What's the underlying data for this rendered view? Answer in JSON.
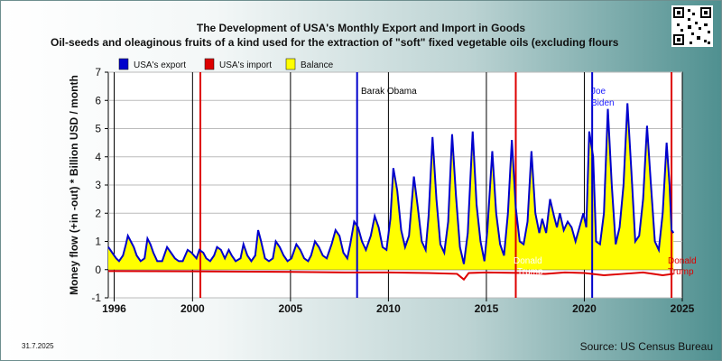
{
  "title_line1": "The Development of USA's Monthly Export and Import in Goods",
  "title_line2": "Oil-seeds and oleaginous fruits of a kind used for the extraction of \"soft\" fixed vegetable oils (excluding flours",
  "date": "31.7.2025",
  "source": "Source: US Census Bureau",
  "qr_label": "QR code",
  "colors": {
    "export": "#0000cc",
    "import": "#dd0000",
    "balance": "#ffff00",
    "presidents": [
      "#0000cc",
      "#dd0000",
      "#0000cc",
      "#dd0000"
    ]
  },
  "chart_data": {
    "type": "area",
    "ylabel": "Money flow (+in -out) * Billion USD / month",
    "ylim": [
      -1,
      7
    ],
    "yticks": [
      -1,
      0,
      1,
      2,
      3,
      4,
      5,
      6,
      7
    ],
    "xlim": [
      1995.7,
      2025.0
    ],
    "xticks": [
      1996,
      2000,
      2005,
      2010,
      2015,
      2020,
      2025
    ],
    "grid": true,
    "legend_position": "top-left",
    "series": [
      {
        "name": "USA's export",
        "key": "export"
      },
      {
        "name": "USA's import",
        "key": "import"
      },
      {
        "name": "Balance",
        "key": "balance"
      }
    ],
    "export_points": [
      [
        1995.7,
        0.8
      ],
      [
        1995.9,
        0.6
      ],
      [
        1996.1,
        0.4
      ],
      [
        1996.25,
        0.3
      ],
      [
        1996.45,
        0.5
      ],
      [
        1996.6,
        0.9
      ],
      [
        1996.7,
        1.2
      ],
      [
        1996.85,
        1.0
      ],
      [
        1997.0,
        0.8
      ],
      [
        1997.15,
        0.5
      ],
      [
        1997.35,
        0.3
      ],
      [
        1997.55,
        0.4
      ],
      [
        1997.7,
        1.1
      ],
      [
        1997.85,
        0.9
      ],
      [
        1998.0,
        0.6
      ],
      [
        1998.2,
        0.3
      ],
      [
        1998.45,
        0.3
      ],
      [
        1998.7,
        0.8
      ],
      [
        1998.9,
        0.6
      ],
      [
        1999.1,
        0.4
      ],
      [
        1999.3,
        0.3
      ],
      [
        1999.5,
        0.3
      ],
      [
        1999.75,
        0.7
      ],
      [
        1999.95,
        0.6
      ],
      [
        2000.2,
        0.4
      ],
      [
        2000.35,
        0.7
      ],
      [
        2000.55,
        0.6
      ],
      [
        2000.7,
        0.4
      ],
      [
        2000.9,
        0.3
      ],
      [
        2001.1,
        0.5
      ],
      [
        2001.25,
        0.8
      ],
      [
        2001.45,
        0.7
      ],
      [
        2001.65,
        0.4
      ],
      [
        2001.85,
        0.7
      ],
      [
        2002.0,
        0.5
      ],
      [
        2002.2,
        0.3
      ],
      [
        2002.45,
        0.4
      ],
      [
        2002.6,
        0.9
      ],
      [
        2002.8,
        0.5
      ],
      [
        2003.0,
        0.3
      ],
      [
        2003.2,
        0.5
      ],
      [
        2003.35,
        1.4
      ],
      [
        2003.5,
        1.0
      ],
      [
        2003.7,
        0.4
      ],
      [
        2003.9,
        0.3
      ],
      [
        2004.1,
        0.4
      ],
      [
        2004.25,
        1.0
      ],
      [
        2004.45,
        0.8
      ],
      [
        2004.65,
        0.5
      ],
      [
        2004.85,
        0.3
      ],
      [
        2005.05,
        0.4
      ],
      [
        2005.3,
        0.9
      ],
      [
        2005.5,
        0.7
      ],
      [
        2005.7,
        0.4
      ],
      [
        2005.9,
        0.3
      ],
      [
        2006.05,
        0.5
      ],
      [
        2006.25,
        1.0
      ],
      [
        2006.45,
        0.8
      ],
      [
        2006.65,
        0.5
      ],
      [
        2006.85,
        0.4
      ],
      [
        2007.1,
        0.9
      ],
      [
        2007.3,
        1.4
      ],
      [
        2007.5,
        1.2
      ],
      [
        2007.7,
        0.6
      ],
      [
        2007.9,
        0.4
      ],
      [
        2008.05,
        0.9
      ],
      [
        2008.25,
        1.7
      ],
      [
        2008.45,
        1.5
      ],
      [
        2008.65,
        1.0
      ],
      [
        2008.85,
        0.7
      ],
      [
        2009.1,
        1.2
      ],
      [
        2009.3,
        1.9
      ],
      [
        2009.5,
        1.5
      ],
      [
        2009.7,
        0.8
      ],
      [
        2009.9,
        0.7
      ],
      [
        2010.1,
        1.8
      ],
      [
        2010.25,
        3.6
      ],
      [
        2010.45,
        2.8
      ],
      [
        2010.65,
        1.4
      ],
      [
        2010.85,
        0.8
      ],
      [
        2011.05,
        1.2
      ],
      [
        2011.3,
        3.3
      ],
      [
        2011.5,
        2.2
      ],
      [
        2011.7,
        1.0
      ],
      [
        2011.9,
        0.7
      ],
      [
        2012.05,
        1.9
      ],
      [
        2012.25,
        4.7
      ],
      [
        2012.45,
        2.5
      ],
      [
        2012.65,
        0.9
      ],
      [
        2012.85,
        0.6
      ],
      [
        2013.05,
        1.7
      ],
      [
        2013.25,
        4.8
      ],
      [
        2013.45,
        2.6
      ],
      [
        2013.65,
        0.8
      ],
      [
        2013.85,
        0.2
      ],
      [
        2014.05,
        1.3
      ],
      [
        2014.3,
        4.9
      ],
      [
        2014.5,
        2.3
      ],
      [
        2014.7,
        1.0
      ],
      [
        2014.9,
        0.3
      ],
      [
        2015.05,
        1.4
      ],
      [
        2015.3,
        4.2
      ],
      [
        2015.5,
        2.0
      ],
      [
        2015.7,
        0.9
      ],
      [
        2015.9,
        0.5
      ],
      [
        2016.1,
        2.0
      ],
      [
        2016.3,
        4.6
      ],
      [
        2016.5,
        2.2
      ],
      [
        2016.7,
        1.0
      ],
      [
        2016.9,
        0.9
      ],
      [
        2017.1,
        1.7
      ],
      [
        2017.3,
        4.2
      ],
      [
        2017.5,
        2.0
      ],
      [
        2017.7,
        1.3
      ],
      [
        2017.85,
        1.8
      ],
      [
        2018.05,
        1.3
      ],
      [
        2018.25,
        2.5
      ],
      [
        2018.45,
        1.9
      ],
      [
        2018.6,
        1.5
      ],
      [
        2018.75,
        2.0
      ],
      [
        2018.95,
        1.4
      ],
      [
        2019.15,
        1.7
      ],
      [
        2019.35,
        1.5
      ],
      [
        2019.55,
        1.0
      ],
      [
        2019.75,
        1.5
      ],
      [
        2019.95,
        2.0
      ],
      [
        2020.1,
        1.5
      ],
      [
        2020.25,
        4.9
      ],
      [
        2020.45,
        4.0
      ],
      [
        2020.6,
        1.0
      ],
      [
        2020.8,
        0.9
      ],
      [
        2021.0,
        2.0
      ],
      [
        2021.2,
        5.7
      ],
      [
        2021.4,
        3.0
      ],
      [
        2021.6,
        0.9
      ],
      [
        2021.8,
        1.5
      ],
      [
        2022.0,
        3.0
      ],
      [
        2022.2,
        5.9
      ],
      [
        2022.4,
        3.5
      ],
      [
        2022.6,
        1.0
      ],
      [
        2022.8,
        1.2
      ],
      [
        2023.0,
        2.5
      ],
      [
        2023.2,
        5.1
      ],
      [
        2023.4,
        3.0
      ],
      [
        2023.6,
        1.0
      ],
      [
        2023.8,
        0.7
      ],
      [
        2024.0,
        2.0
      ],
      [
        2024.2,
        4.5
      ],
      [
        2024.35,
        3.0
      ],
      [
        2024.45,
        1.4
      ],
      [
        2024.55,
        1.3
      ]
    ],
    "import_points": [
      [
        1995.7,
        -0.05
      ],
      [
        2000.0,
        -0.06
      ],
      [
        2005.0,
        -0.08
      ],
      [
        2008.0,
        -0.1
      ],
      [
        2010.0,
        -0.1
      ],
      [
        2012.0,
        -0.12
      ],
      [
        2013.5,
        -0.15
      ],
      [
        2013.85,
        -0.35
      ],
      [
        2014.1,
        -0.12
      ],
      [
        2015.0,
        -0.1
      ],
      [
        2017.0,
        -0.12
      ],
      [
        2018.0,
        -0.15
      ],
      [
        2019.0,
        -0.1
      ],
      [
        2020.0,
        -0.12
      ],
      [
        2021.0,
        -0.2
      ],
      [
        2022.0,
        -0.15
      ],
      [
        2023.0,
        -0.1
      ],
      [
        2024.0,
        -0.2
      ],
      [
        2024.55,
        -0.15
      ]
    ],
    "presidents": [
      {
        "name": "",
        "year": 2000.4
      },
      {
        "name": "Barak Obama",
        "year": 2008.4
      },
      {
        "name": "Donald Trump",
        "year": 2016.5
      },
      {
        "name": "Joe Biden",
        "year": 2020.4
      },
      {
        "name": "Donald Trump",
        "year": 2024.45
      }
    ]
  },
  "labels": {
    "obama": "Barak Obama",
    "trump1_a": "Donald",
    "trump1_b": "Trump",
    "biden_a": "Joe",
    "biden_b": "Biden",
    "trump2_a": "Donald",
    "trump2_b": "Trump"
  }
}
